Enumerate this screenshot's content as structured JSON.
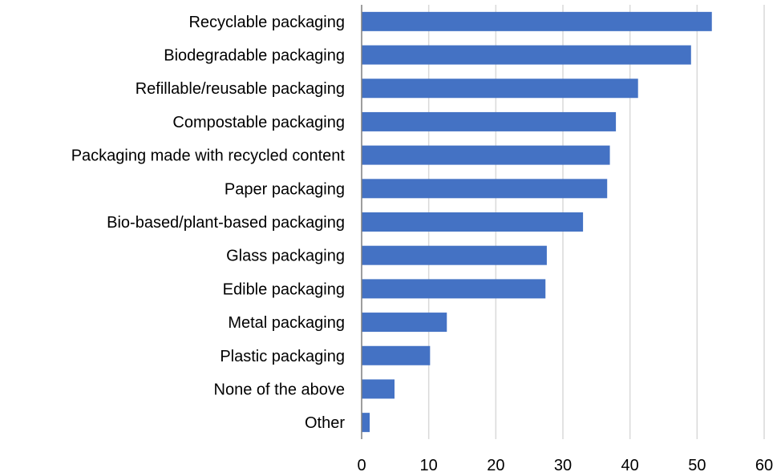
{
  "chart_data": {
    "type": "bar",
    "orientation": "horizontal",
    "categories": [
      "Recyclable packaging",
      "Biodegradable packaging",
      "Refillable/reusable packaging",
      "Compostable packaging",
      "Packaging made with recycled content",
      "Paper packaging",
      "Bio-based/plant-based packaging",
      "Glass packaging",
      "Edible packaging",
      "Metal packaging",
      "Plastic packaging",
      "None of the above",
      "Other"
    ],
    "values": [
      52.2,
      49.1,
      41.2,
      37.9,
      37.0,
      36.6,
      33.0,
      27.6,
      27.4,
      12.7,
      10.2,
      4.9,
      1.2
    ],
    "xlim": [
      0,
      60
    ],
    "xticks": [
      "0",
      "10",
      "20",
      "30",
      "40",
      "50",
      "60"
    ],
    "grid": true,
    "bar_color": "#4472c4",
    "title": "",
    "xlabel": "",
    "ylabel": ""
  }
}
